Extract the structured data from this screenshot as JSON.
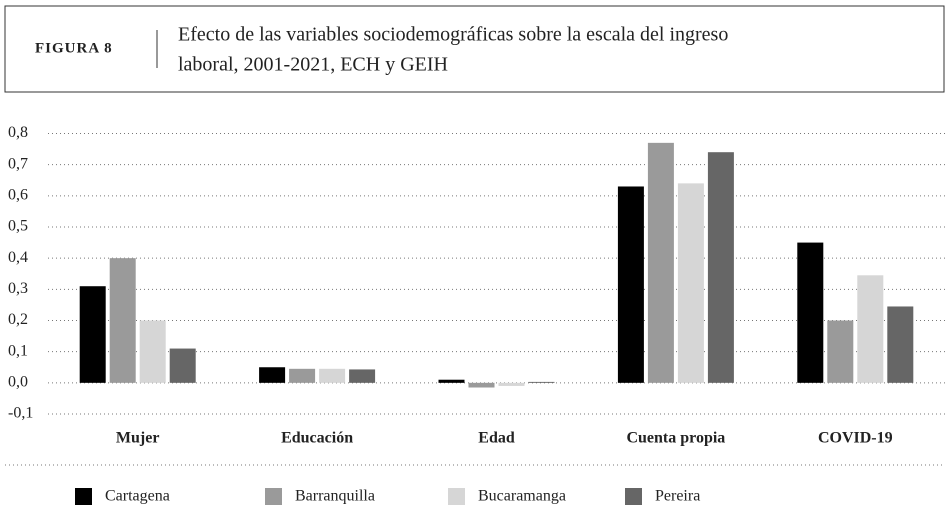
{
  "chart_data": {
    "type": "bar",
    "figure_label": "FIGURA 8",
    "title": [
      "Efecto de las variables sociodemográficas sobre la escala del ingreso",
      "laboral, 2001-2021, ECH y GEIH"
    ],
    "categories": [
      "Mujer",
      "Educación",
      "Edad",
      "Cuenta propia",
      "COVID-19"
    ],
    "series": [
      {
        "name": "Cartagena",
        "color": "#000000",
        "values": [
          0.31,
          0.05,
          0.01,
          0.63,
          0.45
        ]
      },
      {
        "name": "Barranquilla",
        "color": "#9a9a9a",
        "values": [
          0.4,
          0.045,
          -0.015,
          0.77,
          0.2
        ]
      },
      {
        "name": "Bucaramanga",
        "color": "#d6d6d6",
        "values": [
          0.2,
          0.045,
          -0.01,
          0.64,
          0.345
        ]
      },
      {
        "name": "Pereira",
        "color": "#666666",
        "values": [
          0.11,
          0.043,
          0.003,
          0.74,
          0.245
        ]
      }
    ],
    "ylim": [
      -0.1,
      0.8
    ],
    "yticks": [
      {
        "value": -0.1,
        "label": "-0,1"
      },
      {
        "value": 0,
        "label": "0,0"
      },
      {
        "value": 0.1,
        "label": "0,1"
      },
      {
        "value": 0.2,
        "label": "0,2"
      },
      {
        "value": 0.3,
        "label": "0,3"
      },
      {
        "value": 0.4,
        "label": "0,4"
      },
      {
        "value": 0.5,
        "label": "0,5"
      },
      {
        "value": 0.6,
        "label": "0,6"
      },
      {
        "value": 0.7,
        "label": "0,7"
      },
      {
        "value": 0.8,
        "label": "0,8"
      }
    ],
    "grid": true,
    "legend": "bottom"
  }
}
